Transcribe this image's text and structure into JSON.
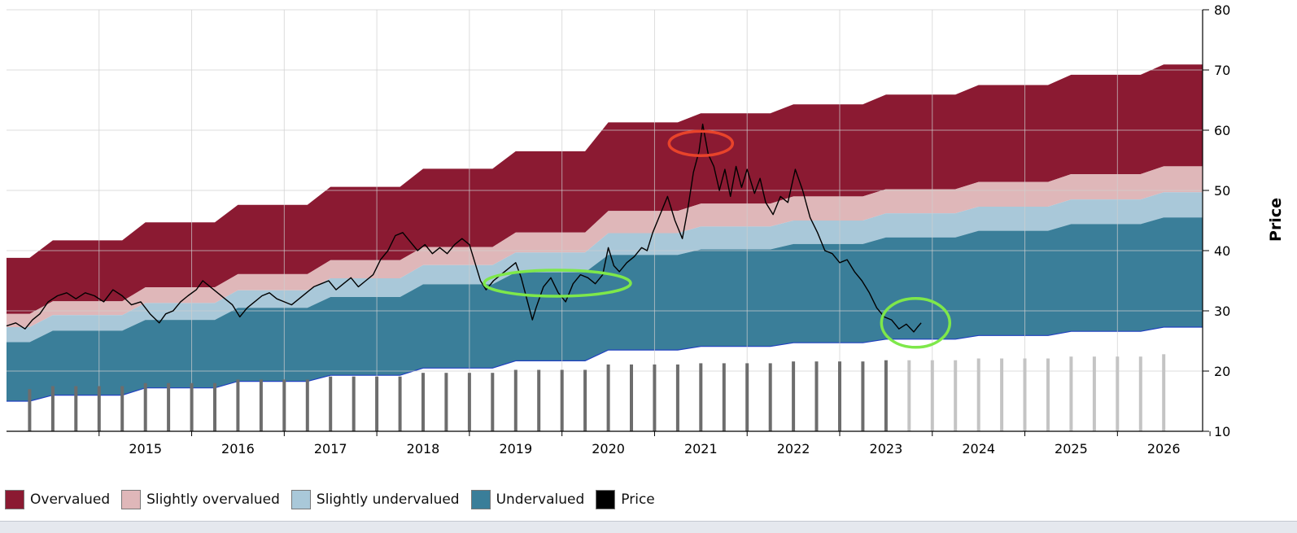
{
  "colors": {
    "overvalued": "#8b1a32",
    "slightly_overvalued": "#dfb7b9",
    "slightly_undervalued": "#a9c8d9",
    "undervalued": "#3a7e99",
    "price": "#000000",
    "boundary": "#2040c0",
    "bars_actual": "#6d6d6d",
    "bars_forecast": "#c4c4c4",
    "marker_red": "#e8432a",
    "marker_green": "#7ee84a",
    "grid": "#cfcfcf"
  },
  "chart_data": {
    "type": "area",
    "ylabel": "Price",
    "ylim": [
      10,
      80
    ],
    "yticks": [
      10,
      20,
      30,
      40,
      50,
      60,
      70,
      80
    ],
    "xlim": [
      2014.0,
      2026.92
    ],
    "xtick_labels": [
      "2015",
      "2016",
      "2017",
      "2018",
      "2019",
      "2020",
      "2021",
      "2022",
      "2023",
      "2024",
      "2025",
      "2026"
    ],
    "grid": true,
    "legend_position": "bottom",
    "legend": [
      "Overvalued",
      "Slightly overvalued",
      "Slightly undervalued",
      "Undervalued",
      "Price"
    ],
    "bands": [
      {
        "x": 2014.0,
        "bottom": 15.0,
        "und_top": 24.8,
        "su_top": 27.3,
        "so_top": 29.5,
        "top": 38.8
      },
      {
        "x": 2014.25,
        "bottom": 15.0,
        "und_top": 24.8,
        "su_top": 27.3,
        "so_top": 29.5,
        "top": 38.8
      },
      {
        "x": 2014.5,
        "bottom": 16.0,
        "und_top": 26.7,
        "su_top": 29.3,
        "so_top": 31.6,
        "top": 41.7
      },
      {
        "x": 2015.25,
        "bottom": 16.0,
        "und_top": 26.7,
        "su_top": 29.3,
        "so_top": 31.6,
        "top": 41.7
      },
      {
        "x": 2015.5,
        "bottom": 17.2,
        "und_top": 28.5,
        "su_top": 31.3,
        "so_top": 33.9,
        "top": 44.7
      },
      {
        "x": 2016.25,
        "bottom": 17.2,
        "und_top": 28.5,
        "su_top": 31.3,
        "so_top": 33.9,
        "top": 44.7
      },
      {
        "x": 2016.5,
        "bottom": 18.3,
        "und_top": 30.5,
        "su_top": 33.4,
        "so_top": 36.1,
        "top": 47.6
      },
      {
        "x": 2017.25,
        "bottom": 18.3,
        "und_top": 30.5,
        "su_top": 33.4,
        "so_top": 36.1,
        "top": 47.6
      },
      {
        "x": 2017.5,
        "bottom": 19.3,
        "und_top": 32.3,
        "su_top": 35.4,
        "so_top": 38.4,
        "top": 50.6
      },
      {
        "x": 2018.25,
        "bottom": 19.3,
        "und_top": 32.3,
        "su_top": 35.4,
        "so_top": 38.4,
        "top": 50.6
      },
      {
        "x": 2018.5,
        "bottom": 20.5,
        "und_top": 34.4,
        "su_top": 37.6,
        "so_top": 40.6,
        "top": 53.6
      },
      {
        "x": 2019.25,
        "bottom": 20.5,
        "und_top": 34.4,
        "su_top": 37.6,
        "so_top": 40.6,
        "top": 53.6
      },
      {
        "x": 2019.5,
        "bottom": 21.7,
        "und_top": 36.4,
        "su_top": 39.7,
        "so_top": 43.0,
        "top": 56.5
      },
      {
        "x": 2020.25,
        "bottom": 21.7,
        "und_top": 36.4,
        "su_top": 39.7,
        "so_top": 43.0,
        "top": 56.5
      },
      {
        "x": 2020.5,
        "bottom": 23.5,
        "und_top": 39.3,
        "su_top": 42.9,
        "so_top": 46.6,
        "top": 61.3
      },
      {
        "x": 2021.25,
        "bottom": 23.5,
        "und_top": 39.3,
        "su_top": 42.9,
        "so_top": 46.6,
        "top": 61.3
      },
      {
        "x": 2021.5,
        "bottom": 24.1,
        "und_top": 40.2,
        "su_top": 44.0,
        "so_top": 47.8,
        "top": 62.8
      },
      {
        "x": 2022.25,
        "bottom": 24.1,
        "und_top": 40.2,
        "su_top": 44.0,
        "so_top": 47.8,
        "top": 62.8
      },
      {
        "x": 2022.5,
        "bottom": 24.7,
        "und_top": 41.1,
        "su_top": 45.0,
        "so_top": 49.0,
        "top": 64.3
      },
      {
        "x": 2023.25,
        "bottom": 24.7,
        "und_top": 41.1,
        "su_top": 45.0,
        "so_top": 49.0,
        "top": 64.3
      },
      {
        "x": 2023.5,
        "bottom": 25.3,
        "und_top": 42.2,
        "su_top": 46.2,
        "so_top": 50.2,
        "top": 65.9
      },
      {
        "x": 2024.25,
        "bottom": 25.3,
        "und_top": 42.2,
        "su_top": 46.2,
        "so_top": 50.2,
        "top": 65.9
      },
      {
        "x": 2024.5,
        "bottom": 25.9,
        "und_top": 43.3,
        "su_top": 47.3,
        "so_top": 51.4,
        "top": 67.5
      },
      {
        "x": 2025.25,
        "bottom": 25.9,
        "und_top": 43.3,
        "su_top": 47.3,
        "so_top": 51.4,
        "top": 67.5
      },
      {
        "x": 2025.5,
        "bottom": 26.6,
        "und_top": 44.4,
        "su_top": 48.5,
        "so_top": 52.7,
        "top": 69.2
      },
      {
        "x": 2026.25,
        "bottom": 26.6,
        "und_top": 44.4,
        "su_top": 48.5,
        "so_top": 52.7,
        "top": 69.2
      },
      {
        "x": 2026.5,
        "bottom": 27.3,
        "und_top": 45.5,
        "su_top": 49.7,
        "so_top": 54.0,
        "top": 70.9
      },
      {
        "x": 2026.92,
        "bottom": 27.3,
        "und_top": 45.5,
        "su_top": 49.7,
        "so_top": 54.0,
        "top": 70.9
      }
    ],
    "price": [
      [
        2014.0,
        27.5
      ],
      [
        2014.1,
        28.0
      ],
      [
        2014.2,
        27.0
      ],
      [
        2014.28,
        28.5
      ],
      [
        2014.36,
        29.5
      ],
      [
        2014.45,
        31.5
      ],
      [
        2014.55,
        32.5
      ],
      [
        2014.65,
        33.0
      ],
      [
        2014.75,
        32.0
      ],
      [
        2014.85,
        33.0
      ],
      [
        2014.95,
        32.5
      ],
      [
        2015.05,
        31.5
      ],
      [
        2015.15,
        33.5
      ],
      [
        2015.25,
        32.5
      ],
      [
        2015.35,
        31.0
      ],
      [
        2015.45,
        31.5
      ],
      [
        2015.55,
        29.5
      ],
      [
        2015.65,
        28.0
      ],
      [
        2015.72,
        29.5
      ],
      [
        2015.8,
        30.0
      ],
      [
        2015.88,
        31.5
      ],
      [
        2015.96,
        32.5
      ],
      [
        2016.05,
        33.5
      ],
      [
        2016.12,
        35.0
      ],
      [
        2016.2,
        34.0
      ],
      [
        2016.28,
        33.0
      ],
      [
        2016.36,
        32.0
      ],
      [
        2016.44,
        31.0
      ],
      [
        2016.52,
        29.0
      ],
      [
        2016.6,
        30.5
      ],
      [
        2016.68,
        31.5
      ],
      [
        2016.76,
        32.5
      ],
      [
        2016.84,
        33.0
      ],
      [
        2016.92,
        32.0
      ],
      [
        2017.0,
        31.5
      ],
      [
        2017.08,
        31.0
      ],
      [
        2017.16,
        32.0
      ],
      [
        2017.24,
        33.0
      ],
      [
        2017.32,
        34.0
      ],
      [
        2017.4,
        34.5
      ],
      [
        2017.48,
        35.0
      ],
      [
        2017.56,
        33.5
      ],
      [
        2017.64,
        34.5
      ],
      [
        2017.72,
        35.5
      ],
      [
        2017.8,
        34.0
      ],
      [
        2017.88,
        35.0
      ],
      [
        2017.96,
        36.0
      ],
      [
        2018.04,
        38.5
      ],
      [
        2018.12,
        40.0
      ],
      [
        2018.2,
        42.5
      ],
      [
        2018.28,
        43.0
      ],
      [
        2018.36,
        41.5
      ],
      [
        2018.44,
        40.0
      ],
      [
        2018.52,
        41.0
      ],
      [
        2018.6,
        39.5
      ],
      [
        2018.68,
        40.5
      ],
      [
        2018.76,
        39.5
      ],
      [
        2018.84,
        41.0
      ],
      [
        2018.92,
        42.0
      ],
      [
        2019.0,
        41.0
      ],
      [
        2019.06,
        38.0
      ],
      [
        2019.12,
        35.0
      ],
      [
        2019.18,
        33.5
      ],
      [
        2019.26,
        35.0
      ],
      [
        2019.34,
        36.0
      ],
      [
        2019.42,
        37.0
      ],
      [
        2019.5,
        38.0
      ],
      [
        2019.56,
        35.5
      ],
      [
        2019.62,
        32.0
      ],
      [
        2019.68,
        28.5
      ],
      [
        2019.72,
        30.5
      ],
      [
        2019.8,
        34.0
      ],
      [
        2019.88,
        35.5
      ],
      [
        2019.96,
        33.0
      ],
      [
        2020.04,
        31.5
      ],
      [
        2020.12,
        34.5
      ],
      [
        2020.2,
        36.0
      ],
      [
        2020.28,
        35.5
      ],
      [
        2020.36,
        34.5
      ],
      [
        2020.44,
        36.0
      ],
      [
        2020.5,
        40.5
      ],
      [
        2020.56,
        37.5
      ],
      [
        2020.62,
        36.5
      ],
      [
        2020.7,
        38.0
      ],
      [
        2020.78,
        39.0
      ],
      [
        2020.86,
        40.5
      ],
      [
        2020.92,
        40.0
      ],
      [
        2020.98,
        43.0
      ],
      [
        2021.06,
        46.0
      ],
      [
        2021.14,
        49.0
      ],
      [
        2021.22,
        45.0
      ],
      [
        2021.3,
        42.0
      ],
      [
        2021.36,
        47.0
      ],
      [
        2021.42,
        53.0
      ],
      [
        2021.48,
        56.5
      ],
      [
        2021.52,
        61.0
      ],
      [
        2021.58,
        56.0
      ],
      [
        2021.64,
        54.0
      ],
      [
        2021.7,
        50.0
      ],
      [
        2021.76,
        53.5
      ],
      [
        2021.82,
        49.0
      ],
      [
        2021.88,
        54.0
      ],
      [
        2021.94,
        50.5
      ],
      [
        2022.0,
        53.5
      ],
      [
        2022.08,
        49.5
      ],
      [
        2022.14,
        52.0
      ],
      [
        2022.2,
        48.0
      ],
      [
        2022.28,
        46.0
      ],
      [
        2022.36,
        49.0
      ],
      [
        2022.44,
        48.0
      ],
      [
        2022.52,
        53.5
      ],
      [
        2022.6,
        50.0
      ],
      [
        2022.68,
        45.5
      ],
      [
        2022.76,
        43.0
      ],
      [
        2022.84,
        40.0
      ],
      [
        2022.92,
        39.5
      ],
      [
        2023.0,
        38.0
      ],
      [
        2023.08,
        38.5
      ],
      [
        2023.16,
        36.5
      ],
      [
        2023.24,
        35.0
      ],
      [
        2023.32,
        33.0
      ],
      [
        2023.4,
        30.5
      ],
      [
        2023.48,
        29.0
      ],
      [
        2023.56,
        28.5
      ],
      [
        2023.64,
        27.0
      ],
      [
        2023.72,
        27.8
      ],
      [
        2023.8,
        26.5
      ],
      [
        2023.84,
        27.3
      ],
      [
        2023.88,
        28.0
      ]
    ],
    "bars": [
      {
        "x": 2014.25,
        "value": 17.0
      },
      {
        "x": 2014.5,
        "value": 17.5
      },
      {
        "x": 2014.75,
        "value": 17.5
      },
      {
        "x": 2015.0,
        "value": 17.5
      },
      {
        "x": 2015.25,
        "value": 17.5
      },
      {
        "x": 2015.5,
        "value": 18.0
      },
      {
        "x": 2015.75,
        "value": 18.0
      },
      {
        "x": 2016.0,
        "value": 18.0
      },
      {
        "x": 2016.25,
        "value": 18.0
      },
      {
        "x": 2016.5,
        "value": 18.6
      },
      {
        "x": 2016.75,
        "value": 18.6
      },
      {
        "x": 2017.0,
        "value": 18.6
      },
      {
        "x": 2017.25,
        "value": 18.6
      },
      {
        "x": 2017.5,
        "value": 19.1
      },
      {
        "x": 2017.75,
        "value": 19.1
      },
      {
        "x": 2018.0,
        "value": 19.1
      },
      {
        "x": 2018.25,
        "value": 19.1
      },
      {
        "x": 2018.5,
        "value": 19.7
      },
      {
        "x": 2018.75,
        "value": 19.7
      },
      {
        "x": 2019.0,
        "value": 19.7
      },
      {
        "x": 2019.25,
        "value": 19.7
      },
      {
        "x": 2019.5,
        "value": 20.2
      },
      {
        "x": 2019.75,
        "value": 20.2
      },
      {
        "x": 2020.0,
        "value": 20.2
      },
      {
        "x": 2020.25,
        "value": 20.2
      },
      {
        "x": 2020.5,
        "value": 21.1
      },
      {
        "x": 2020.75,
        "value": 21.1
      },
      {
        "x": 2021.0,
        "value": 21.1
      },
      {
        "x": 2021.25,
        "value": 21.1
      },
      {
        "x": 2021.5,
        "value": 21.3
      },
      {
        "x": 2021.75,
        "value": 21.3
      },
      {
        "x": 2022.0,
        "value": 21.3
      },
      {
        "x": 2022.25,
        "value": 21.3
      },
      {
        "x": 2022.5,
        "value": 21.6
      },
      {
        "x": 2022.75,
        "value": 21.6
      },
      {
        "x": 2023.0,
        "value": 21.6
      },
      {
        "x": 2023.25,
        "value": 21.6
      },
      {
        "x": 2023.5,
        "value": 21.8
      },
      {
        "x": 2023.75,
        "value": 21.8,
        "forecast": true
      },
      {
        "x": 2024.0,
        "value": 21.8,
        "forecast": true
      },
      {
        "x": 2024.25,
        "value": 21.8,
        "forecast": true
      },
      {
        "x": 2024.5,
        "value": 22.1,
        "forecast": true
      },
      {
        "x": 2024.75,
        "value": 22.1,
        "forecast": true
      },
      {
        "x": 2025.0,
        "value": 22.1,
        "forecast": true
      },
      {
        "x": 2025.25,
        "value": 22.1,
        "forecast": true
      },
      {
        "x": 2025.5,
        "value": 22.4,
        "forecast": true
      },
      {
        "x": 2025.75,
        "value": 22.4,
        "forecast": true
      },
      {
        "x": 2026.0,
        "value": 22.4,
        "forecast": true
      },
      {
        "x": 2026.25,
        "value": 22.4,
        "forecast": true
      },
      {
        "x": 2026.5,
        "value": 22.8,
        "forecast": true
      }
    ],
    "markers": [
      {
        "kind": "overvalued-peak",
        "color": "red",
        "x": 2021.5,
        "y": 57.8
      },
      {
        "kind": "undervalued-range",
        "color": "green",
        "x": 2019.95,
        "y": 34.6
      },
      {
        "kind": "undervalued-current",
        "color": "green",
        "x": 2023.82,
        "y": 28.0
      }
    ]
  }
}
